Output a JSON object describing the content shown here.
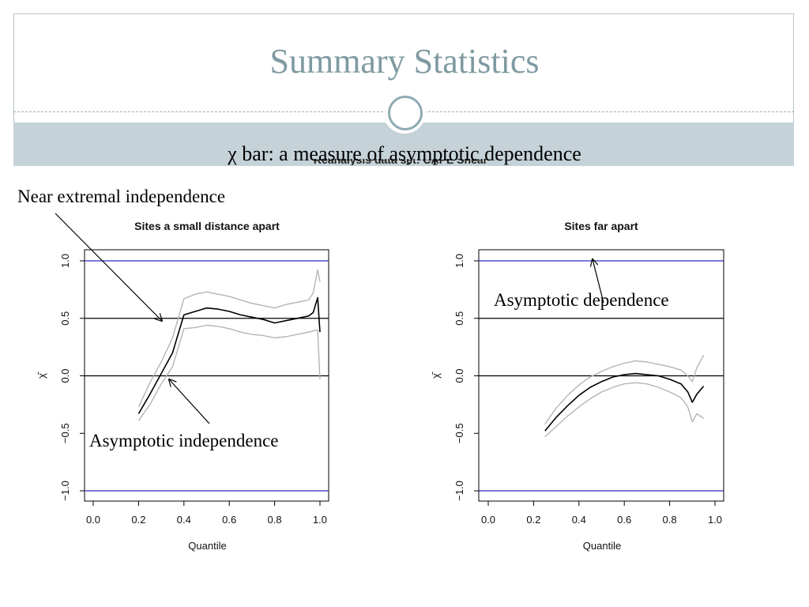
{
  "slide": {
    "title": "Summary Statistics",
    "subtitle": "χ bar: a measure of asymptotic dependence",
    "background_figure_title": "Reanalysis data set: CAPE Shear"
  },
  "annotations": {
    "near_extremal": "Near extremal independence",
    "asym_independence": "Asymptotic independence",
    "asym_dependence": "Asymptotic dependence"
  },
  "colors": {
    "title": "#7f9aa1",
    "band": "#c5d2d8",
    "ring": "#8eaab2",
    "blue_line": "#2b2bbd",
    "band_line": "#b5b5b5"
  },
  "chart_data": [
    {
      "type": "line",
      "title": "Sites a small distance apart",
      "xlabel": "Quantile",
      "ylabel": "χ̄",
      "xlim": [
        0,
        1
      ],
      "ylim": [
        -1,
        1
      ],
      "x_ticks": [
        "0.0",
        "0.2",
        "0.4",
        "0.6",
        "0.8",
        "1.0"
      ],
      "y_ticks": [
        "−1.0",
        "−0.5",
        "0.0",
        "0.5",
        "1.0"
      ],
      "reference_lines": [
        -1,
        0,
        0.5,
        1
      ],
      "series": [
        {
          "role": "estimate",
          "x": [
            0.2,
            0.25,
            0.3,
            0.35,
            0.4,
            0.45,
            0.5,
            0.55,
            0.6,
            0.65,
            0.7,
            0.75,
            0.8,
            0.85,
            0.9,
            0.95,
            0.97,
            0.99,
            1.0
          ],
          "y": [
            -0.33,
            -0.16,
            0.02,
            0.2,
            0.53,
            0.56,
            0.59,
            0.58,
            0.56,
            0.53,
            0.51,
            0.49,
            0.46,
            0.48,
            0.5,
            0.52,
            0.55,
            0.68,
            0.38
          ]
        },
        {
          "role": "upper",
          "x": [
            0.2,
            0.25,
            0.3,
            0.35,
            0.4,
            0.45,
            0.5,
            0.55,
            0.6,
            0.65,
            0.7,
            0.75,
            0.8,
            0.85,
            0.9,
            0.95,
            0.97,
            0.99,
            1.0
          ],
          "y": [
            -0.27,
            -0.06,
            0.12,
            0.33,
            0.67,
            0.71,
            0.73,
            0.71,
            0.69,
            0.66,
            0.63,
            0.61,
            0.59,
            0.62,
            0.64,
            0.66,
            0.72,
            0.92,
            0.82
          ]
        },
        {
          "role": "lower",
          "x": [
            0.2,
            0.25,
            0.3,
            0.35,
            0.4,
            0.45,
            0.5,
            0.55,
            0.6,
            0.65,
            0.7,
            0.75,
            0.8,
            0.85,
            0.9,
            0.95,
            0.97,
            0.99,
            1.0
          ],
          "y": [
            -0.39,
            -0.25,
            -0.07,
            0.08,
            0.41,
            0.42,
            0.44,
            0.43,
            0.41,
            0.38,
            0.36,
            0.35,
            0.33,
            0.34,
            0.36,
            0.38,
            0.39,
            0.4,
            -0.03
          ]
        }
      ]
    },
    {
      "type": "line",
      "title": "Sites far apart",
      "xlabel": "Quantile",
      "ylabel": "χ̄",
      "xlim": [
        0,
        1
      ],
      "ylim": [
        -1,
        1
      ],
      "x_ticks": [
        "0.0",
        "0.2",
        "0.4",
        "0.6",
        "0.8",
        "1.0"
      ],
      "y_ticks": [
        "−1.0",
        "−0.5",
        "0.0",
        "0.5",
        "1.0"
      ],
      "reference_lines": [
        -1,
        0,
        0.5,
        1
      ],
      "series": [
        {
          "role": "estimate",
          "x": [
            0.25,
            0.3,
            0.35,
            0.4,
            0.45,
            0.5,
            0.55,
            0.6,
            0.65,
            0.7,
            0.75,
            0.8,
            0.85,
            0.88,
            0.9,
            0.92,
            0.95
          ],
          "y": [
            -0.48,
            -0.36,
            -0.26,
            -0.17,
            -0.1,
            -0.05,
            -0.01,
            0.01,
            0.02,
            0.01,
            0.0,
            -0.03,
            -0.07,
            -0.14,
            -0.23,
            -0.16,
            -0.09
          ]
        },
        {
          "role": "upper",
          "x": [
            0.25,
            0.3,
            0.35,
            0.4,
            0.45,
            0.5,
            0.55,
            0.6,
            0.65,
            0.7,
            0.75,
            0.8,
            0.85,
            0.88,
            0.9,
            0.92,
            0.95
          ],
          "y": [
            -0.42,
            -0.28,
            -0.17,
            -0.08,
            -0.01,
            0.04,
            0.08,
            0.11,
            0.13,
            0.12,
            0.1,
            0.08,
            0.05,
            0.0,
            -0.05,
            0.07,
            0.18
          ]
        },
        {
          "role": "lower",
          "x": [
            0.25,
            0.3,
            0.35,
            0.4,
            0.45,
            0.5,
            0.55,
            0.6,
            0.65,
            0.7,
            0.75,
            0.8,
            0.85,
            0.88,
            0.9,
            0.92,
            0.95
          ],
          "y": [
            -0.53,
            -0.44,
            -0.35,
            -0.27,
            -0.2,
            -0.14,
            -0.1,
            -0.07,
            -0.06,
            -0.07,
            -0.1,
            -0.14,
            -0.19,
            -0.27,
            -0.4,
            -0.33,
            -0.37
          ]
        }
      ]
    }
  ]
}
